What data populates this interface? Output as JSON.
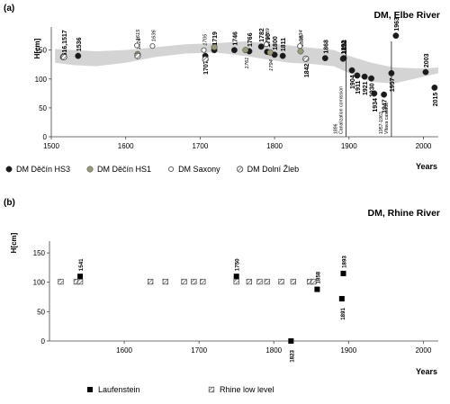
{
  "chart_data": [
    {
      "panel": "(a)",
      "title": "DM, Elbe River",
      "type": "scatter",
      "ylabel": "H[cm]",
      "xlabel": "Years",
      "xlim": [
        1500,
        2020
      ],
      "ylim": [
        0,
        190
      ],
      "xticks": [
        1500,
        1600,
        1700,
        1800,
        1900,
        2000
      ],
      "yticks": [
        0,
        50,
        100,
        150
      ],
      "legend_position": "bottom",
      "band": {
        "x": [
          1505,
          1530,
          1560,
          1600,
          1640,
          1680,
          1720,
          1760,
          1790,
          1820,
          1850,
          1880,
          1900,
          1930,
          1960,
          2000,
          2020
        ],
        "lower": [
          128,
          124,
          122,
          128,
          138,
          144,
          146,
          140,
          134,
          128,
          126,
          122,
          110,
          95,
          92,
          104,
          110
        ],
        "upper": [
          152,
          150,
          148,
          150,
          155,
          160,
          162,
          165,
          162,
          158,
          154,
          150,
          140,
          128,
          120,
          118,
          120
        ]
      },
      "series": [
        {
          "name": "DM Děčín HS3",
          "marker": "filled-circle",
          "color": "#1a1a1a",
          "points": [
            {
              "x": 1536,
              "y": 140,
              "label": "1536"
            },
            {
              "x": 1707,
              "y": 140,
              "label": "1707"
            },
            {
              "x": 1719,
              "y": 150,
              "label": "1719"
            },
            {
              "x": 1746,
              "y": 150,
              "label": "1746"
            },
            {
              "x": 1766,
              "y": 148,
              "label": "1766"
            },
            {
              "x": 1782,
              "y": 156,
              "label": "1782"
            },
            {
              "x": 1790,
              "y": 147,
              "label": "1790"
            },
            {
              "x": 1800,
              "y": 142,
              "label": "1800"
            },
            {
              "x": 1811,
              "y": 140,
              "label": "1811"
            },
            {
              "x": 1868,
              "y": 136,
              "label": "1868"
            },
            {
              "x": 1892,
              "y": 135,
              "label": "1892"
            },
            {
              "x": 1893,
              "y": 136,
              "label": "1893"
            },
            {
              "x": 1904,
              "y": 115,
              "label": "1904"
            },
            {
              "x": 1911,
              "y": 106,
              "label": "1911"
            },
            {
              "x": 1921,
              "y": 104,
              "label": "1921"
            },
            {
              "x": 1930,
              "y": 101,
              "label": "1930"
            },
            {
              "x": 1934,
              "y": 75,
              "label": "1934"
            },
            {
              "x": 1947,
              "y": 73,
              "label": "1947"
            },
            {
              "x": 1957,
              "y": 110,
              "label": "1957"
            },
            {
              "x": 1963,
              "y": 175,
              "label": "1963"
            },
            {
              "x": 2003,
              "y": 112,
              "label": "2003"
            },
            {
              "x": 2015,
              "y": 85,
              "label": "2015"
            }
          ]
        },
        {
          "name": "DM Děčín HS1",
          "marker": "filled-circle",
          "color": "#9a9a7a",
          "points": [
            {
              "x": 1616,
              "y": 143,
              "label": "1616"
            },
            {
              "x": 1719,
              "y": 155,
              "label": ""
            },
            {
              "x": 1761,
              "y": 150,
              "label": "1761"
            },
            {
              "x": 1794,
              "y": 146,
              "label": "1794"
            },
            {
              "x": 1835,
              "y": 148,
              "label": "1835"
            }
          ]
        },
        {
          "name": "DM Saxony",
          "marker": "open-circle",
          "color": "#555555",
          "points": [
            {
              "x": 1615,
              "y": 158,
              "label": "1615"
            },
            {
              "x": 1636,
              "y": 157,
              "label": "1636"
            },
            {
              "x": 1705,
              "y": 150,
              "label": "1705"
            },
            {
              "x": 1789,
              "y": 160,
              "label": "1789"
            },
            {
              "x": 1834,
              "y": 157,
              "label": "1834"
            }
          ]
        },
        {
          "name": "DM Dolní Žleb",
          "marker": "hatched-circle",
          "color": "#666666",
          "points": [
            {
              "x": 1516,
              "y": 138,
              "label": "1516,1517"
            },
            {
              "x": 1517,
              "y": 138,
              "label": ""
            },
            {
              "x": 1616,
              "y": 140,
              "label": ""
            },
            {
              "x": 1707,
              "y": 134,
              "label": ""
            },
            {
              "x": 1842,
              "y": 135,
              "label": "1842"
            }
          ]
        }
      ],
      "annotations": [
        {
          "x": 1896,
          "text": "1896 Canalization comission"
        },
        {
          "x": 1957,
          "text": "1957-1963 Vltava cascade"
        }
      ]
    },
    {
      "panel": "(b)",
      "title": "DM, Rhine River",
      "type": "scatter",
      "ylabel": "H[cm]",
      "xlabel": "Years",
      "xlim": [
        1500,
        2020
      ],
      "ylim": [
        0,
        170
      ],
      "xticks": [
        1600,
        1700,
        1800,
        1900,
        2000
      ],
      "yticks": [
        0,
        50,
        100,
        150
      ],
      "legend_position": "bottom",
      "series": [
        {
          "name": "Laufenstein",
          "marker": "filled-square",
          "color": "#000000",
          "points": [
            {
              "x": 1541,
              "y": 110,
              "label": "1541"
            },
            {
              "x": 1750,
              "y": 110,
              "label": "1750"
            },
            {
              "x": 1823,
              "y": 0,
              "label": "1823"
            },
            {
              "x": 1858,
              "y": 88,
              "label": "1858"
            },
            {
              "x": 1891,
              "y": 72,
              "label": "1891"
            },
            {
              "x": 1893,
              "y": 115,
              "label": "1893"
            }
          ]
        },
        {
          "name": "Rhine low level",
          "marker": "hatched-square",
          "color": "#555555",
          "points": [
            {
              "x": 1515,
              "y": 101,
              "label": ""
            },
            {
              "x": 1536,
              "y": 101,
              "label": ""
            },
            {
              "x": 1541,
              "y": 101,
              "label": ""
            },
            {
              "x": 1635,
              "y": 101,
              "label": ""
            },
            {
              "x": 1655,
              "y": 101,
              "label": ""
            },
            {
              "x": 1680,
              "y": 101,
              "label": ""
            },
            {
              "x": 1693,
              "y": 101,
              "label": ""
            },
            {
              "x": 1705,
              "y": 101,
              "label": ""
            },
            {
              "x": 1750,
              "y": 101,
              "label": ""
            },
            {
              "x": 1767,
              "y": 101,
              "label": ""
            },
            {
              "x": 1781,
              "y": 101,
              "label": ""
            },
            {
              "x": 1791,
              "y": 101,
              "label": ""
            },
            {
              "x": 1810,
              "y": 101,
              "label": ""
            },
            {
              "x": 1826,
              "y": 101,
              "label": ""
            },
            {
              "x": 1848,
              "y": 101,
              "label": ""
            },
            {
              "x": 1853,
              "y": 101,
              "label": ""
            }
          ]
        }
      ]
    }
  ]
}
